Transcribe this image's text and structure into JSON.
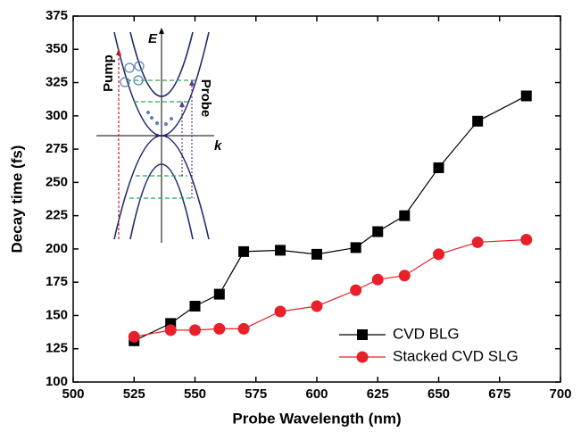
{
  "chart_data": {
    "type": "line",
    "x_label": "Probe Wavelength (nm)",
    "y_label": "Decay time (fs)",
    "xlim": [
      500,
      700
    ],
    "xticks": [
      500,
      525,
      550,
      575,
      600,
      625,
      650,
      675,
      700
    ],
    "ylim": [
      100,
      375
    ],
    "yticks": [
      100,
      125,
      150,
      175,
      200,
      225,
      250,
      275,
      300,
      325,
      350,
      375
    ],
    "legend": "lower right",
    "series": [
      {
        "name": "CVD BLG",
        "color": "#000000",
        "marker": "square",
        "x": [
          525,
          540,
          550,
          560,
          570,
          585,
          600,
          616,
          625,
          636,
          650,
          666,
          686
        ],
        "values": [
          131,
          144,
          157,
          166,
          198,
          199,
          196,
          201,
          213,
          225,
          261,
          296,
          315
        ]
      },
      {
        "name": "Stacked CVD SLG",
        "color": "#e8202a",
        "marker": "circle",
        "x": [
          525,
          540,
          550,
          560,
          570,
          585,
          600,
          616,
          625,
          636,
          650,
          666,
          686
        ],
        "values": [
          134,
          139,
          139,
          140,
          140,
          153,
          157,
          169,
          177,
          180,
          196,
          205,
          207
        ]
      }
    ],
    "inset": {
      "energy_axis": "E",
      "momentum_axis": "k",
      "pump": "Pump",
      "probe": "Probe"
    }
  }
}
